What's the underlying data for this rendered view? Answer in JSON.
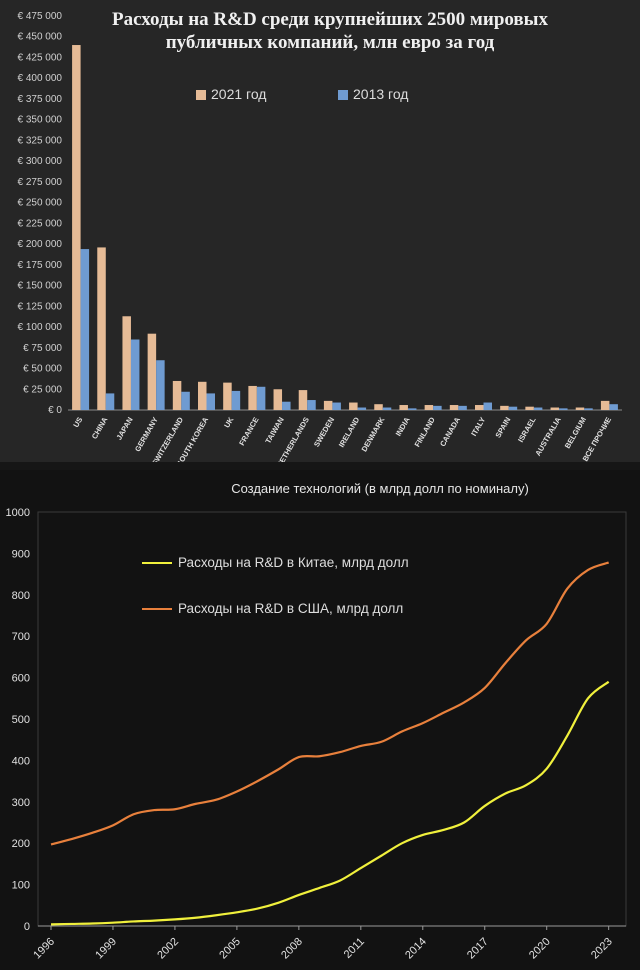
{
  "chart_data": [
    {
      "type": "bar",
      "title": "Расходы на R&D среди крупнейших 2500 мировых публичных компаний, млн евро за год",
      "categories": [
        "US",
        "CHINA",
        "JAPAN",
        "GERMANY",
        "SWITZERLAND",
        "SOUTH KOREA",
        "UK",
        "FRANCE",
        "TAIWAN",
        "NETHERLANDS",
        "SWEDEN",
        "IRELAND",
        "DENMARK",
        "INDIA",
        "FINLAND",
        "CANADA",
        "ITALY",
        "SPAIN",
        "ISRAEL",
        "AUSTRALIA",
        "BELGIUM",
        "ВСЕ ПРОЧИЕ"
      ],
      "series": [
        {
          "name": "2021 год",
          "color": "#e6bb96",
          "values": [
            440000,
            196000,
            113000,
            92000,
            35000,
            34000,
            33000,
            29000,
            25000,
            24000,
            11000,
            9000,
            7000,
            6000,
            6000,
            6000,
            6000,
            5000,
            4000,
            3000,
            3000,
            11000
          ]
        },
        {
          "name": "2013 год",
          "color": "#6f9bd1",
          "values": [
            194000,
            20000,
            85000,
            60000,
            22000,
            20000,
            23000,
            28000,
            10000,
            12000,
            9000,
            3000,
            3000,
            2000,
            5000,
            5000,
            9000,
            4000,
            3000,
            2000,
            2000,
            7000
          ]
        }
      ],
      "ylim": [
        0,
        475000
      ],
      "yticks": [
        "€ 0",
        "€ 25 000",
        "€ 50 000",
        "€ 75 000",
        "€ 100 000",
        "€ 125 000",
        "€ 150 000",
        "€ 175 000",
        "€ 200 000",
        "€ 225 000",
        "€ 250 000",
        "€ 275 000",
        "€ 300 000",
        "€ 325 000",
        "€ 350 000",
        "€ 375 000",
        "€ 400 000",
        "€ 425 000",
        "€ 450 000",
        "€ 475 000"
      ],
      "legend": [
        "2021 год",
        "2013 год"
      ],
      "legend_position": "top"
    },
    {
      "type": "line",
      "title": "Создание технологий (в млрд долл по номиналу)",
      "x": [
        1996,
        1997,
        1998,
        1999,
        2000,
        2001,
        2002,
        2003,
        2004,
        2005,
        2006,
        2007,
        2008,
        2009,
        2010,
        2011,
        2012,
        2013,
        2014,
        2015,
        2016,
        2017,
        2018,
        2019,
        2020,
        2021,
        2022,
        2023
      ],
      "xticks": [
        "1996",
        "1999",
        "2002",
        "2005",
        "2008",
        "2011",
        "2014",
        "2017",
        "2020",
        "2023"
      ],
      "yticks": [
        "0",
        "100",
        "200",
        "300",
        "400",
        "500",
        "600",
        "700",
        "800",
        "900",
        "1000"
      ],
      "ylim": [
        0,
        1000
      ],
      "series": [
        {
          "name": "Расходы на R&D в Китае, млрд долл",
          "color": "#f0f03c",
          "values": [
            4,
            5,
            6,
            8,
            11,
            13,
            16,
            20,
            26,
            33,
            42,
            56,
            75,
            92,
            110,
            140,
            170,
            200,
            220,
            232,
            250,
            290,
            320,
            340,
            380,
            460,
            550,
            590
          ]
        },
        {
          "name": "Расходы на R&D в США, млрд долл",
          "color": "#e8803c",
          "values": [
            197,
            210,
            225,
            243,
            270,
            280,
            282,
            295,
            305,
            325,
            350,
            378,
            408,
            410,
            420,
            435,
            445,
            470,
            490,
            515,
            540,
            575,
            635,
            690,
            730,
            815,
            860,
            878
          ]
        }
      ],
      "legend_position": "upper-left",
      "grid": false
    }
  ]
}
